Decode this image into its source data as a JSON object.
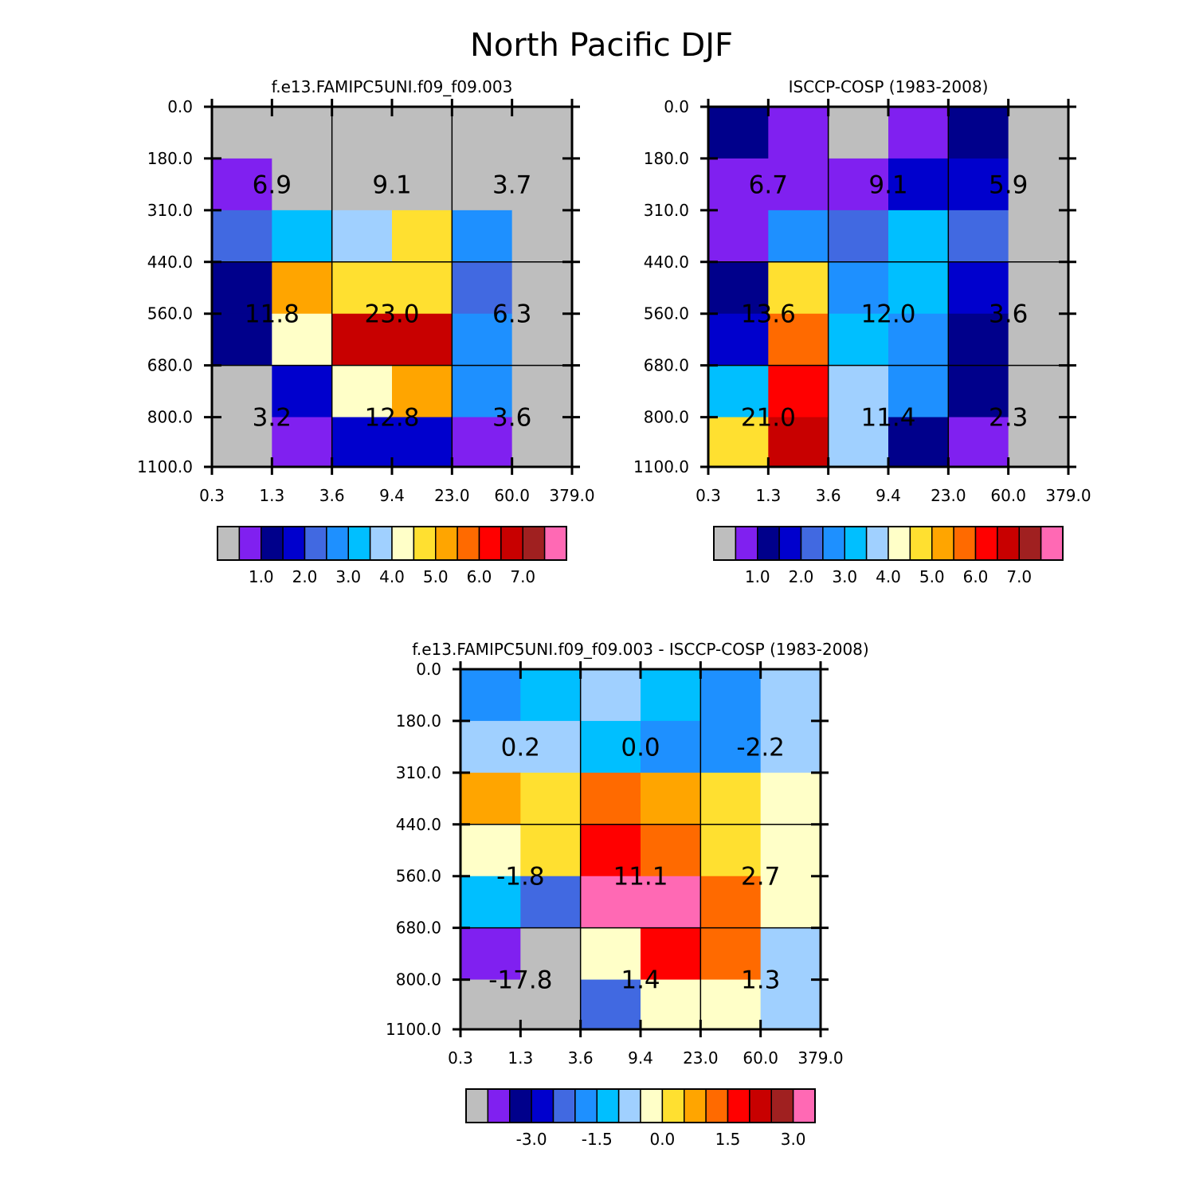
{
  "title": "North Pacific DJF",
  "palette": [
    "#bebebe",
    "#8020f0",
    "#00008b",
    "#0000cd",
    "#4169e1",
    "#1e90ff",
    "#00bfff",
    "#a0d0ff",
    "#ffffc8",
    "#ffe030",
    "#ffa500",
    "#ff6a00",
    "#ff0000",
    "#c80000",
    "#a02020",
    "#ff69b4"
  ],
  "chart_data": [
    {
      "type": "heatmap",
      "title": "f.e13.FAMIPC5UNI.f09_f09.003",
      "x_tick_labels": [
        "0.3",
        "1.3",
        "3.6",
        "9.4",
        "23.0",
        "60.0",
        "379.0"
      ],
      "y_tick_labels": [
        "0.0",
        "180.0",
        "310.0",
        "440.0",
        "560.0",
        "680.0",
        "800.0",
        "1100.0"
      ],
      "cells": [
        [
          0,
          0,
          0,
          0,
          0,
          0
        ],
        [
          1,
          0,
          0,
          0,
          0,
          0
        ],
        [
          4,
          6,
          7,
          9,
          5,
          0
        ],
        [
          2,
          10,
          9,
          9,
          4,
          0
        ],
        [
          2,
          8,
          13,
          13,
          5,
          0
        ],
        [
          0,
          3,
          8,
          10,
          5,
          0
        ],
        [
          0,
          1,
          3,
          3,
          1,
          0
        ]
      ],
      "group_values": [
        [
          "6.9",
          "9.1",
          "3.7"
        ],
        [
          "11.8",
          "23.0",
          "6.3"
        ],
        [
          "3.2",
          "12.8",
          "3.6"
        ]
      ],
      "colorbar_labels": [
        "1.0",
        "2.0",
        "3.0",
        "4.0",
        "5.0",
        "6.0",
        "7.0"
      ],
      "colorbar_levels": [
        1.0,
        2.0,
        3.0,
        4.0,
        5.0,
        6.0,
        7.0
      ]
    },
    {
      "type": "heatmap",
      "title": "ISCCP-COSP (1983-2008)",
      "x_tick_labels": [
        "0.3",
        "1.3",
        "3.6",
        "9.4",
        "23.0",
        "60.0",
        "379.0"
      ],
      "y_tick_labels": [
        "0.0",
        "180.0",
        "310.0",
        "440.0",
        "560.0",
        "680.0",
        "800.0",
        "1100.0"
      ],
      "cells": [
        [
          2,
          1,
          0,
          1,
          2,
          0
        ],
        [
          1,
          1,
          1,
          3,
          3,
          0
        ],
        [
          1,
          5,
          4,
          6,
          4,
          0
        ],
        [
          2,
          9,
          5,
          6,
          3,
          0
        ],
        [
          3,
          11,
          6,
          5,
          2,
          0
        ],
        [
          6,
          12,
          7,
          5,
          2,
          0
        ],
        [
          9,
          13,
          7,
          2,
          1,
          0
        ]
      ],
      "group_values": [
        [
          "6.7",
          "9.1",
          "5.9"
        ],
        [
          "13.6",
          "12.0",
          "3.6"
        ],
        [
          "21.0",
          "11.4",
          "2.3"
        ]
      ],
      "colorbar_labels": [
        "1.0",
        "2.0",
        "3.0",
        "4.0",
        "5.0",
        "6.0",
        "7.0"
      ],
      "colorbar_levels": [
        1.0,
        2.0,
        3.0,
        4.0,
        5.0,
        6.0,
        7.0
      ]
    },
    {
      "type": "heatmap",
      "title": "f.e13.FAMIPC5UNI.f09_f09.003 - ISCCP-COSP (1983-2008)",
      "x_tick_labels": [
        "0.3",
        "1.3",
        "3.6",
        "9.4",
        "23.0",
        "60.0",
        "379.0"
      ],
      "y_tick_labels": [
        "0.0",
        "180.0",
        "310.0",
        "440.0",
        "560.0",
        "680.0",
        "800.0",
        "1100.0"
      ],
      "cells": [
        [
          5,
          6,
          7,
          6,
          5,
          7
        ],
        [
          7,
          7,
          6,
          5,
          5,
          7
        ],
        [
          10,
          9,
          11,
          10,
          9,
          8
        ],
        [
          8,
          9,
          12,
          11,
          9,
          8
        ],
        [
          6,
          4,
          15,
          15,
          11,
          8
        ],
        [
          1,
          0,
          8,
          12,
          11,
          7
        ],
        [
          0,
          0,
          4,
          8,
          8,
          7
        ]
      ],
      "group_values": [
        [
          "0.2",
          "0.0",
          "-2.2"
        ],
        [
          "-1.8",
          "11.1",
          "2.7"
        ],
        [
          "-17.8",
          "1.4",
          "1.3"
        ]
      ],
      "colorbar_labels": [
        "-3.0",
        "-1.5",
        "0.0",
        "1.5",
        "3.0"
      ],
      "colorbar_levels": [
        -3.0,
        -1.5,
        0.0,
        1.5,
        3.0
      ]
    }
  ]
}
